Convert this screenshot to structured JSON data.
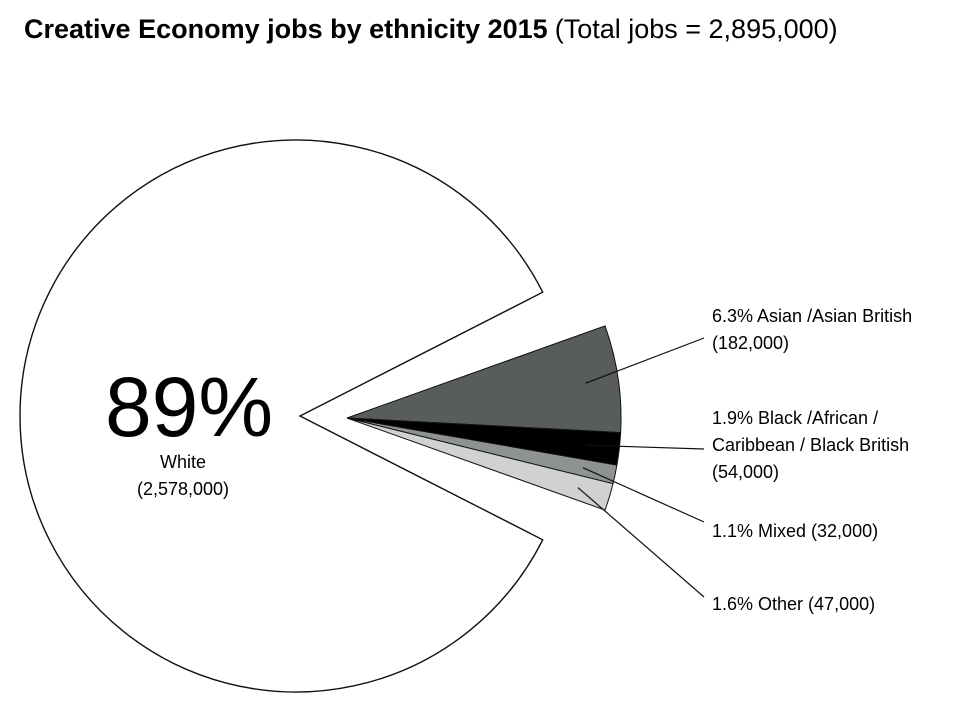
{
  "chart_data": {
    "type": "pie",
    "title": "Creative Economy jobs by ethnicity 2015",
    "subtitle": "(Total jobs = 2,895,000)",
    "slices": [
      {
        "name": "White",
        "percent_label": "89%",
        "percent": 89,
        "value": 2578000,
        "value_label": "(2,578,000)",
        "color": "#ffffff",
        "exploded": false
      },
      {
        "name": "Asian /Asian British",
        "percent_label": "6.3%",
        "percent": 6.3,
        "value": 182000,
        "value_label": "(182,000)",
        "color": "#595c5c",
        "exploded": true
      },
      {
        "name": "Black /African / Caribbean / Black British",
        "percent_label": "1.9%",
        "percent": 1.9,
        "value": 54000,
        "value_label": "(54,000)",
        "color": "#000000",
        "exploded": true
      },
      {
        "name": "Mixed",
        "percent_label": "1.1%",
        "percent": 1.1,
        "value": 32000,
        "value_label": "(32,000)",
        "color": "#8f9292",
        "exploded": true
      },
      {
        "name": "Other",
        "percent_label": "1.6%",
        "percent": 1.6,
        "value": 47000,
        "value_label": "(47,000)",
        "color": "#d0d2d2",
        "exploded": true
      }
    ]
  },
  "labels": {
    "white_pct": "89%",
    "white_name": "White",
    "white_value": "(2,578,000)",
    "asian_line1": "6.3% Asian /Asian British",
    "asian_line2": "(182,000)",
    "black_line1": "1.9% Black /African /",
    "black_line2": "Caribbean / Black British",
    "black_line3": "(54,000)",
    "mixed_line1": "1.1% Mixed (32,000)",
    "other_line1": "1.6% Other (47,000)"
  }
}
